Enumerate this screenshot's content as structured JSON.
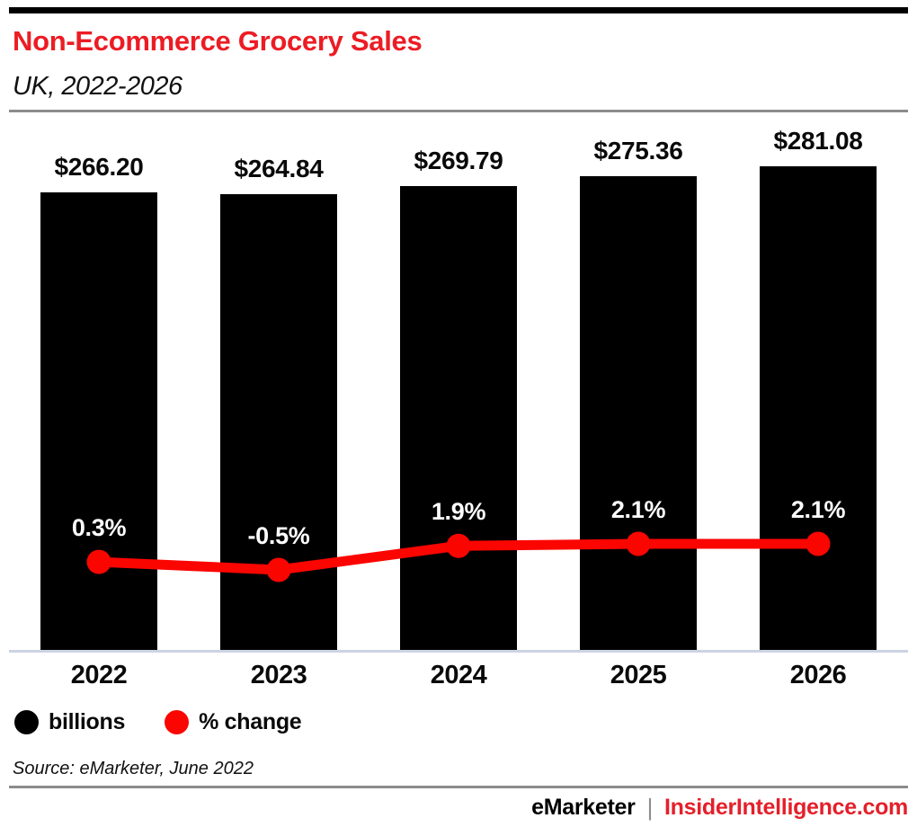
{
  "header": {
    "title": "Non-Ecommerce Grocery Sales",
    "subtitle": "UK, 2022-2026"
  },
  "chart_data": {
    "type": "bar",
    "subtype": "bar-with-line-overlay",
    "categories": [
      "2022",
      "2023",
      "2024",
      "2025",
      "2026"
    ],
    "series": [
      {
        "name": "billions",
        "type": "bar",
        "values": [
          266.2,
          264.84,
          269.79,
          275.36,
          281.08
        ],
        "labels": [
          "$266.20",
          "$264.84",
          "$269.79",
          "$275.36",
          "$281.08"
        ],
        "color": "#000000"
      },
      {
        "name": "% change",
        "type": "line",
        "values": [
          0.3,
          -0.5,
          1.9,
          2.1,
          2.1
        ],
        "labels": [
          "0.3%",
          "-0.5%",
          "1.9%",
          "2.1%",
          "2.1%"
        ],
        "color": "#fa0500"
      }
    ],
    "legend": [
      {
        "label": "billions",
        "color": "#000000"
      },
      {
        "label": "% change",
        "color": "#fa0500"
      }
    ],
    "legend_position": "bottom-left",
    "grid": false,
    "value_axis_visible": false,
    "bar_baseline": 0
  },
  "footer": {
    "source": "Source: eMarketer, June 2022",
    "brand_left": "eMarketer",
    "brand_separator": "|",
    "brand_right": "InsiderIntelligence.com"
  },
  "colors": {
    "title_red": "#ec1c24",
    "brand_red": "#e4202a",
    "line_red": "#fa0500",
    "bar_black": "#000000",
    "axis_line": "#ccd4e2",
    "rule_gray": "#8c8c8c"
  }
}
